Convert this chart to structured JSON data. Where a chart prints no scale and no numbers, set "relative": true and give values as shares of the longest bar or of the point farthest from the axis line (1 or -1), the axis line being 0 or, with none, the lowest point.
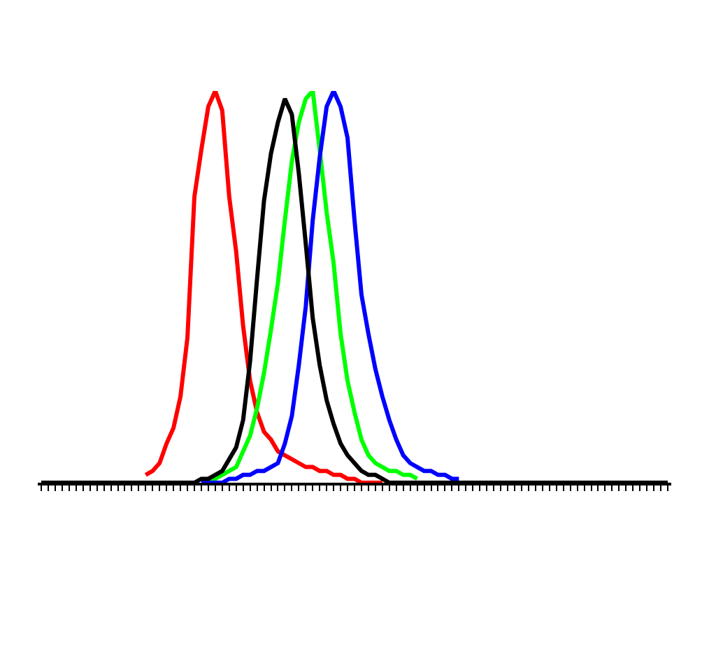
{
  "chart_data": {
    "type": "line",
    "relative": true,
    "grid": false,
    "marker": "none",
    "line_style": "solid",
    "categories": [
      null,
      null,
      null,
      null,
      null,
      null,
      null,
      null,
      null,
      null,
      null,
      null,
      null,
      null,
      null,
      null,
      null,
      null,
      null,
      null,
      null,
      null,
      null,
      null,
      null,
      null,
      null,
      null,
      null,
      null,
      null,
      null,
      null,
      null,
      null,
      null,
      null,
      null,
      null,
      null,
      null,
      null,
      null,
      null,
      null,
      null,
      null,
      null,
      null,
      null,
      null,
      null,
      null,
      null,
      null,
      null,
      null,
      null,
      null,
      null,
      null,
      null,
      null,
      null,
      null,
      null,
      null,
      null,
      null,
      null,
      null,
      null,
      null,
      null,
      null,
      null,
      null,
      null,
      null,
      null,
      null,
      null,
      null,
      null,
      null,
      null,
      null,
      null,
      null,
      null,
      null
    ],
    "series": [
      {
        "color": "#ff0000",
        "values": [
          null,
          null,
          null,
          null,
          null,
          null,
          null,
          null,
          null,
          null,
          null,
          null,
          null,
          null,
          null,
          0.02,
          0.03,
          0.05,
          0.1,
          0.14,
          0.22,
          0.37,
          0.73,
          0.85,
          0.96,
          1,
          0.95,
          0.73,
          0.59,
          0.4,
          0.26,
          0.18,
          0.13,
          0.11,
          0.08,
          0.07,
          0.06,
          0.05,
          0.04,
          0.04,
          0.03,
          0.03,
          0.02,
          0.02,
          0.01,
          0.01,
          0,
          0,
          0,
          0,
          null,
          null,
          null,
          null,
          null,
          null,
          null,
          null,
          null,
          null,
          null,
          null,
          null,
          null,
          null,
          null,
          null,
          null,
          null,
          null,
          null,
          null,
          null,
          null,
          null,
          null,
          null,
          null,
          null,
          null,
          null,
          null,
          null,
          null,
          null,
          null,
          null,
          null,
          null,
          null,
          null
        ]
      },
      {
        "color": "#00ff00",
        "values": [
          null,
          null,
          null,
          null,
          null,
          null,
          null,
          null,
          null,
          null,
          null,
          null,
          null,
          null,
          null,
          null,
          null,
          null,
          null,
          null,
          null,
          null,
          null,
          0,
          0,
          0.01,
          0.02,
          0.03,
          0.04,
          0.08,
          0.12,
          0.19,
          0.28,
          0.39,
          0.51,
          0.67,
          0.82,
          0.92,
          0.98,
          1,
          0.85,
          0.69,
          0.56,
          0.38,
          0.26,
          0.18,
          0.11,
          0.07,
          0.05,
          0.04,
          0.03,
          0.03,
          0.02,
          0.02,
          0.01,
          null,
          null,
          null,
          null,
          null,
          null,
          null,
          null,
          null,
          null,
          null,
          null,
          null,
          null,
          null,
          null,
          null,
          null,
          null,
          null,
          null,
          null,
          null,
          null,
          null,
          null,
          null,
          null,
          null,
          null,
          null,
          null,
          null,
          null,
          null,
          null
        ]
      },
      {
        "color": "#0000ff",
        "values": [
          null,
          null,
          null,
          null,
          null,
          null,
          null,
          null,
          null,
          null,
          null,
          null,
          null,
          null,
          null,
          null,
          null,
          null,
          null,
          null,
          null,
          null,
          null,
          0,
          0,
          0,
          0,
          0.01,
          0.01,
          0.02,
          0.02,
          0.03,
          0.03,
          0.04,
          0.05,
          0.1,
          0.17,
          0.3,
          0.45,
          0.67,
          0.83,
          0.96,
          1,
          0.96,
          0.88,
          0.67,
          0.48,
          0.38,
          0.29,
          0.22,
          0.16,
          0.11,
          0.07,
          0.05,
          0.04,
          0.03,
          0.03,
          0.02,
          0.02,
          0.01,
          0.01,
          null,
          null,
          null,
          null,
          null,
          null,
          null,
          null,
          null,
          null,
          null,
          null,
          null,
          null,
          null,
          null,
          null,
          null,
          null,
          null,
          null,
          null,
          null,
          null,
          null,
          null,
          null,
          null,
          null,
          null
        ]
      },
      {
        "color": "#000000",
        "values": [
          0,
          0,
          0,
          0,
          0,
          0,
          0,
          0,
          0,
          0,
          0,
          0,
          0,
          0,
          0,
          0,
          0,
          0,
          0,
          0,
          0,
          0,
          0,
          0.01,
          0.01,
          0.02,
          0.03,
          0.06,
          0.09,
          0.16,
          0.31,
          0.52,
          0.72,
          0.84,
          0.92,
          0.98,
          0.94,
          0.79,
          0.61,
          0.42,
          0.3,
          0.21,
          0.15,
          0.1,
          0.07,
          0.05,
          0.03,
          0.02,
          0.02,
          0.01,
          0,
          0,
          0,
          0,
          0,
          0,
          0,
          0,
          0,
          0,
          0,
          0,
          0,
          0,
          0,
          0,
          0,
          0,
          0,
          0,
          0,
          0,
          0,
          0,
          0,
          0,
          0,
          0,
          0,
          0,
          0,
          0,
          0,
          0,
          0,
          0,
          0,
          0,
          0,
          0,
          0
        ]
      }
    ]
  }
}
